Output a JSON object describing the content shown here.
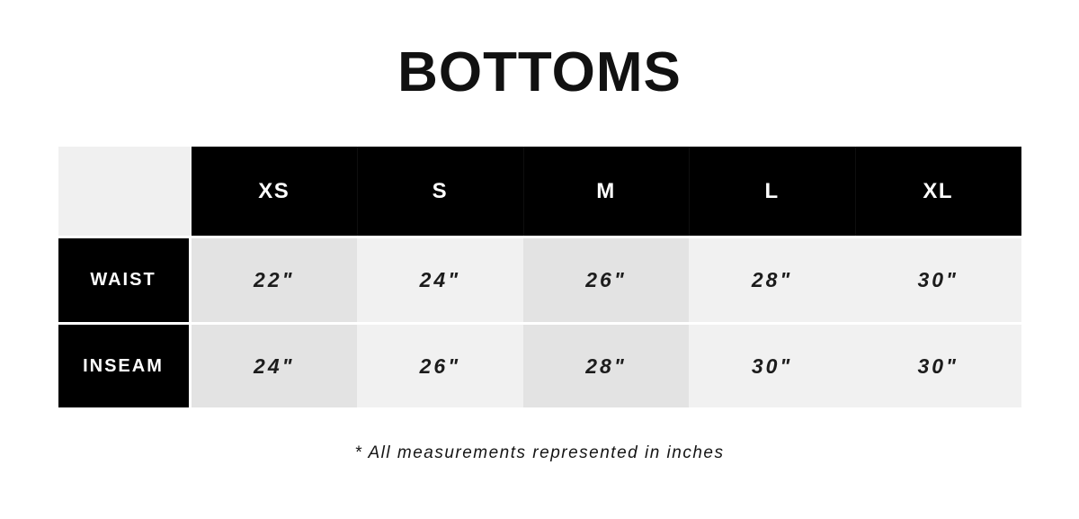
{
  "title": "BOTTOMS",
  "footnote": "* All measurements represented in inches",
  "table": {
    "corner_label": "",
    "columns": [
      "XS",
      "S",
      "M",
      "L",
      "XL"
    ],
    "rows": [
      {
        "label": "WAIST",
        "values": [
          "22\"",
          "24\"",
          "26\"",
          "28\"",
          "30\""
        ]
      },
      {
        "label": "INSEAM",
        "values": [
          "24\"",
          "26\"",
          "28\"",
          "30\"",
          "30\""
        ]
      }
    ]
  },
  "chart_data": {
    "type": "table",
    "title": "BOTTOMS",
    "columns": [
      "XS",
      "S",
      "M",
      "L",
      "XL"
    ],
    "rows": [
      {
        "label": "WAIST",
        "values_inches": [
          22,
          24,
          26,
          28,
          30
        ]
      },
      {
        "label": "INSEAM",
        "values_inches": [
          24,
          26,
          28,
          30,
          30
        ]
      }
    ],
    "footnote": "* All measurements represented in inches",
    "units": "inches"
  },
  "colors": {
    "page_bg": "#ffffff",
    "header_bg": "#000000",
    "header_text": "#ffffff",
    "label_bg": "#000000",
    "label_text": "#ffffff",
    "cell_dark": "#e3e3e3",
    "cell_light": "#f1f1f1",
    "corner_bg": "#f0f0f0",
    "cell_text": "#1c1c1c"
  }
}
